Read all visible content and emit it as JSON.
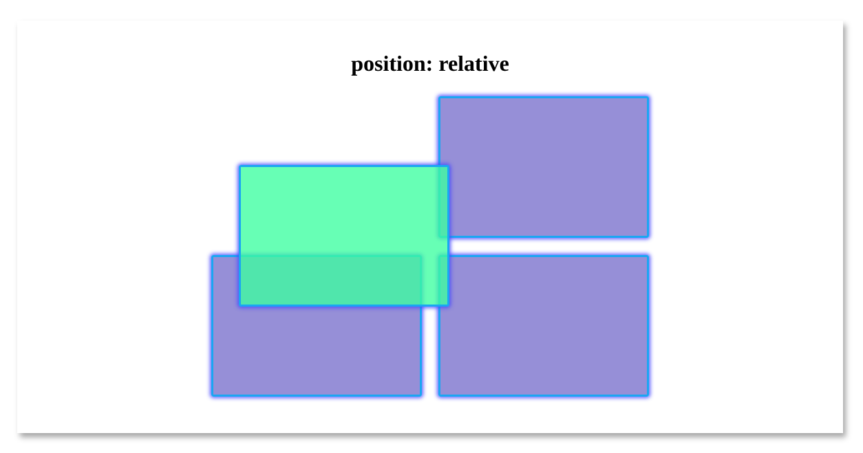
{
  "page": {
    "title": "position: relative"
  },
  "boxes": [
    {
      "id": "box-1",
      "label": "",
      "color": "#6e64c8"
    },
    {
      "id": "box-2",
      "label": "",
      "color": "#6e64c8"
    },
    {
      "id": "box-3",
      "label": "",
      "color": "#6e64c8"
    },
    {
      "id": "relative-box",
      "label": "",
      "color": "#3cffa0",
      "border_color": "#1aa6f2"
    }
  ]
}
